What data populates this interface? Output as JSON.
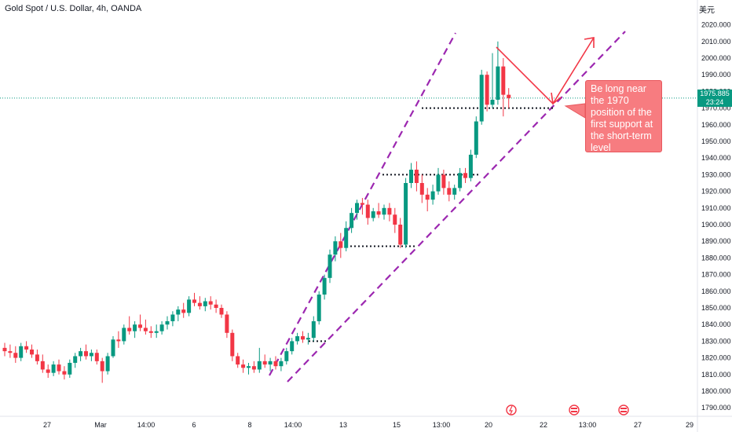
{
  "header": {
    "title": "Gold Spot / U.S. Dollar, 4h, OANDA",
    "unit": "美元"
  },
  "price_tag": {
    "price": "1975.885",
    "countdown": "23:24"
  },
  "annotation": {
    "text": "Be long near the 1970 position of the first support at the short-term level"
  },
  "colors": {
    "up": "#089981",
    "down": "#f23645",
    "channel": "#9c27b0",
    "arrow": "#f23645",
    "callout_bg": "#f77c80"
  },
  "chart_data": {
    "type": "candlestick",
    "title": "Gold Spot / U.S. Dollar, 4h, OANDA",
    "ylim": [
      1785,
      2025
    ],
    "y_ticks": [
      1790,
      1800,
      1810,
      1820,
      1830,
      1840,
      1850,
      1860,
      1870,
      1880,
      1890,
      1900,
      1910,
      1920,
      1930,
      1940,
      1950,
      1960,
      1970,
      1980,
      1990,
      2000,
      2010,
      2020
    ],
    "x_tick_labels": [
      "27",
      "Mar",
      "14:00",
      "6",
      "8",
      "14:00",
      "13",
      "15",
      "13:00",
      "20",
      "22",
      "13:00",
      "27",
      "29"
    ],
    "ohlc": [
      [
        1826,
        1829,
        1821,
        1824
      ],
      [
        1824,
        1828,
        1820,
        1823
      ],
      [
        1823,
        1827,
        1817,
        1820
      ],
      [
        1820,
        1829,
        1818,
        1827
      ],
      [
        1827,
        1830,
        1823,
        1825
      ],
      [
        1825,
        1828,
        1820,
        1822
      ],
      [
        1822,
        1825,
        1816,
        1818
      ],
      [
        1818,
        1822,
        1811,
        1813
      ],
      [
        1813,
        1816,
        1808,
        1811
      ],
      [
        1811,
        1818,
        1809,
        1816
      ],
      [
        1816,
        1819,
        1810,
        1812
      ],
      [
        1812,
        1815,
        1807,
        1810
      ],
      [
        1810,
        1819,
        1808,
        1817
      ],
      [
        1817,
        1823,
        1814,
        1821
      ],
      [
        1821,
        1826,
        1818,
        1824
      ],
      [
        1824,
        1828,
        1819,
        1821
      ],
      [
        1821,
        1825,
        1818,
        1823
      ],
      [
        1823,
        1825,
        1816,
        1818
      ],
      [
        1818,
        1820,
        1805,
        1812
      ],
      [
        1812,
        1823,
        1810,
        1821
      ],
      [
        1821,
        1833,
        1820,
        1831
      ],
      [
        1831,
        1836,
        1826,
        1830
      ],
      [
        1830,
        1840,
        1828,
        1838
      ],
      [
        1838,
        1845,
        1834,
        1836
      ],
      [
        1836,
        1842,
        1832,
        1840
      ],
      [
        1840,
        1846,
        1836,
        1838
      ],
      [
        1838,
        1843,
        1834,
        1836
      ],
      [
        1836,
        1839,
        1832,
        1835
      ],
      [
        1835,
        1840,
        1832,
        1836
      ],
      [
        1836,
        1842,
        1834,
        1840
      ],
      [
        1840,
        1845,
        1837,
        1842
      ],
      [
        1842,
        1848,
        1839,
        1846
      ],
      [
        1846,
        1851,
        1842,
        1849
      ],
      [
        1849,
        1853,
        1844,
        1847
      ],
      [
        1847,
        1857,
        1845,
        1855
      ],
      [
        1855,
        1859,
        1851,
        1853
      ],
      [
        1853,
        1857,
        1849,
        1851
      ],
      [
        1851,
        1856,
        1848,
        1854
      ],
      [
        1854,
        1857,
        1849,
        1852
      ],
      [
        1852,
        1855,
        1847,
        1850
      ],
      [
        1850,
        1852,
        1844,
        1846
      ],
      [
        1846,
        1848,
        1832,
        1835
      ],
      [
        1835,
        1837,
        1818,
        1821
      ],
      [
        1821,
        1823,
        1814,
        1816
      ],
      [
        1816,
        1819,
        1811,
        1814
      ],
      [
        1814,
        1817,
        1810,
        1815
      ],
      [
        1815,
        1818,
        1811,
        1813
      ],
      [
        1813,
        1826,
        1811,
        1818
      ],
      [
        1818,
        1822,
        1814,
        1816
      ],
      [
        1816,
        1820,
        1812,
        1818
      ],
      [
        1818,
        1821,
        1813,
        1815
      ],
      [
        1815,
        1820,
        1812,
        1818
      ],
      [
        1818,
        1826,
        1816,
        1824
      ],
      [
        1824,
        1832,
        1822,
        1830
      ],
      [
        1830,
        1835,
        1828,
        1833
      ],
      [
        1833,
        1836,
        1829,
        1831
      ],
      [
        1831,
        1835,
        1828,
        1832
      ],
      [
        1832,
        1845,
        1830,
        1842
      ],
      [
        1842,
        1860,
        1840,
        1858
      ],
      [
        1858,
        1870,
        1855,
        1868
      ],
      [
        1868,
        1885,
        1865,
        1882
      ],
      [
        1882,
        1893,
        1878,
        1890
      ],
      [
        1890,
        1895,
        1880,
        1886
      ],
      [
        1886,
        1902,
        1884,
        1898
      ],
      [
        1898,
        1910,
        1895,
        1907
      ],
      [
        1907,
        1915,
        1903,
        1913
      ],
      [
        1913,
        1916,
        1906,
        1912
      ],
      [
        1912,
        1915,
        1900,
        1904
      ],
      [
        1904,
        1910,
        1902,
        1908
      ],
      [
        1908,
        1913,
        1904,
        1906
      ],
      [
        1906,
        1912,
        1903,
        1910
      ],
      [
        1910,
        1913,
        1902,
        1906
      ],
      [
        1906,
        1910,
        1895,
        1900
      ],
      [
        1900,
        1904,
        1886,
        1888
      ],
      [
        1888,
        1928,
        1886,
        1925
      ],
      [
        1925,
        1937,
        1922,
        1933
      ],
      [
        1933,
        1938,
        1920,
        1925
      ],
      [
        1925,
        1930,
        1913,
        1918
      ],
      [
        1918,
        1922,
        1908,
        1915
      ],
      [
        1915,
        1924,
        1912,
        1920
      ],
      [
        1920,
        1934,
        1918,
        1930
      ],
      [
        1930,
        1933,
        1918,
        1922
      ],
      [
        1922,
        1926,
        1914,
        1918
      ],
      [
        1918,
        1924,
        1915,
        1922
      ],
      [
        1922,
        1934,
        1920,
        1931
      ],
      [
        1931,
        1934,
        1925,
        1928
      ],
      [
        1928,
        1945,
        1926,
        1942
      ],
      [
        1942,
        1965,
        1940,
        1962
      ],
      [
        1962,
        1993,
        1960,
        1990
      ],
      [
        1990,
        1992,
        1968,
        1972
      ],
      [
        1972,
        2003,
        1970,
        1975
      ],
      [
        1975,
        2010,
        1972,
        1995
      ],
      [
        1995,
        2000,
        1965,
        1978
      ],
      [
        1978,
        1982,
        1970,
        1976
      ]
    ],
    "support_levels": [
      1930,
      1887,
      1970
    ]
  }
}
